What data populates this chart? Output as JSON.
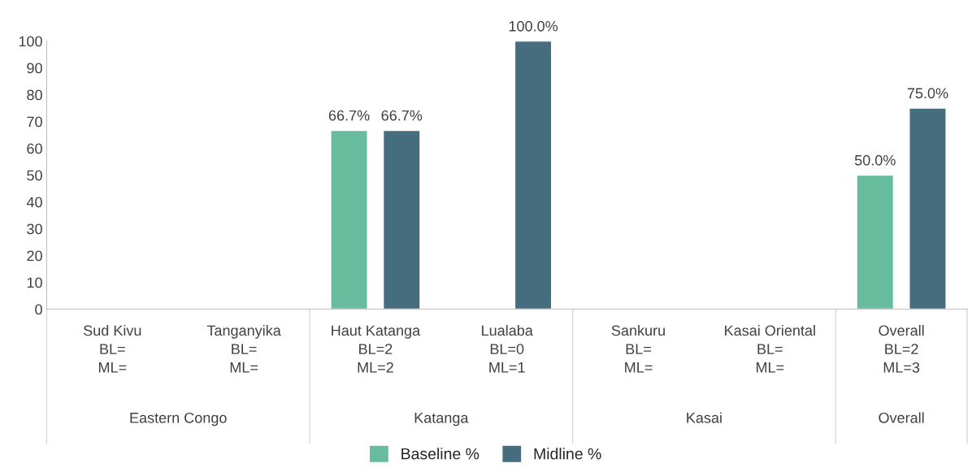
{
  "chart_data": {
    "type": "bar",
    "categories": [
      "Sud Kivu\nBL=\nML=",
      "Tanganyika\nBL=\nML=",
      "Haut Katanga\nBL=2\nML=2",
      "Lualaba\nBL=0\nML=1",
      "Sankuru\nBL=\nML=",
      "Kasai Oriental\nBL=\nML=",
      "Overall\nBL=2\nML=3"
    ],
    "series": [
      {
        "name": "Baseline %",
        "color": "#66bc9c",
        "values": [
          null,
          null,
          66.7,
          null,
          null,
          null,
          50.0
        ],
        "value_labels": [
          null,
          null,
          "66.7%",
          null,
          null,
          null,
          "50.0%"
        ]
      },
      {
        "name": "Midline %",
        "color": "#466d7e",
        "values": [
          null,
          null,
          66.7,
          100.0,
          null,
          null,
          75.0
        ],
        "value_labels": [
          null,
          null,
          "66.7%",
          "100.0%",
          null,
          null,
          "75.0%"
        ]
      }
    ],
    "ylim": [
      0,
      100
    ],
    "yticks": [
      0,
      10,
      20,
      30,
      40,
      50,
      60,
      70,
      80,
      90,
      100
    ],
    "grid": false,
    "legend": "bottom",
    "annotations": [
      "Eastern Congo",
      "Katanga",
      "Kasai",
      "Overall"
    ]
  }
}
